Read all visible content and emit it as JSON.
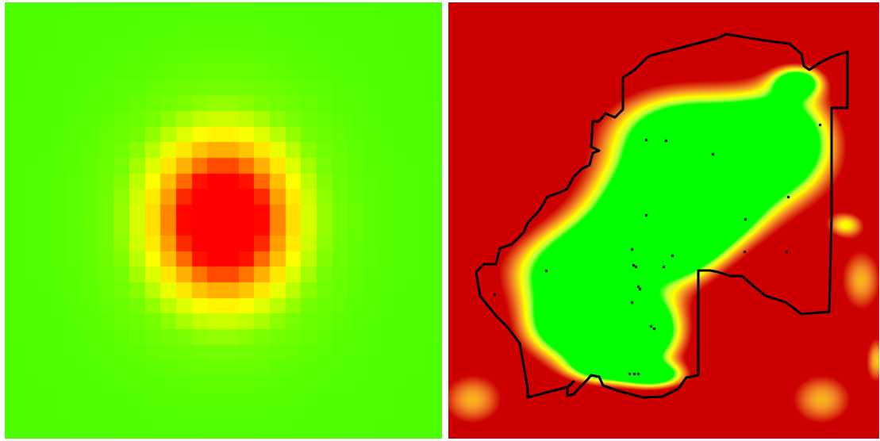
{
  "panels": [
    {
      "name": "pixelated-radial-heatmap",
      "grid_cells": 28,
      "palette": [
        "#4cff00",
        "#ffff00",
        "#ff9a00",
        "#ff0000"
      ]
    },
    {
      "name": "smoothed-suitability-map-with-boundary",
      "palette": [
        "#00ff00",
        "#ffff00",
        "#ffcc66",
        "#cc0000"
      ],
      "boundary_color": "#000000"
    }
  ]
}
